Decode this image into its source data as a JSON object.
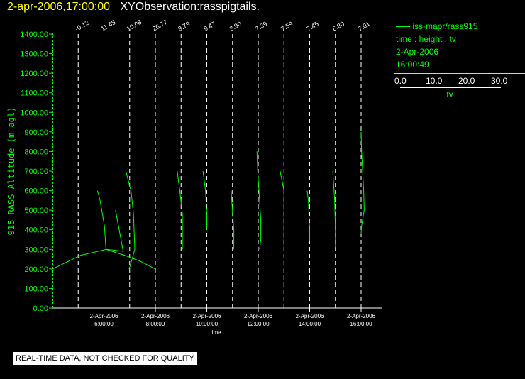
{
  "header": {
    "timestamp": "2-apr-2006,17:00:00",
    "observation": "XYObservation:rasspigtails."
  },
  "legend": {
    "series_name": "iss-mapr/rass915",
    "variables": "time : height : tv",
    "date": "2-Apr-2006",
    "time": "16:00:49",
    "scale_ticks": [
      "0.0",
      "10.0",
      "20.0",
      "30.0"
    ],
    "scale_label": "tv"
  },
  "disclaimer": "REAL-TIME DATA, NOT CHECKED FOR QUALITY",
  "colors": {
    "trace": "#00ff00",
    "title": "#ffff00",
    "axis": "#ffffff",
    "guide": "#ffffff"
  },
  "chart_data": {
    "type": "line",
    "title": "XYObservation:rasspigtails.",
    "xlabel": "time",
    "ylabel": "915 RASS Altitude (m agl)",
    "ylim": [
      0,
      1400
    ],
    "y_ticks": [
      "0.00",
      "100.00",
      "200.00",
      "300.00",
      "400.00",
      "500.00",
      "600.00",
      "700.00",
      "800.00",
      "900.00",
      "1000.00",
      "1100.00",
      "1200.00",
      "1300.00",
      "1400.00"
    ],
    "x_ticks": [
      {
        "date": "2-Apr-2006",
        "time": "6:00:00"
      },
      {
        "date": "2-Apr-2006",
        "time": "8:00:00"
      },
      {
        "date": "2-Apr-2006",
        "time": "10:00:00"
      },
      {
        "date": "2-Apr-2006",
        "time": "12:00:00"
      },
      {
        "date": "2-Apr-2006",
        "time": "14:00:00"
      },
      {
        "date": "2-Apr-2006",
        "time": "16:00:00"
      }
    ],
    "xlim_hours": [
      4.0,
      16.8
    ],
    "profiles": [
      {
        "hour": 5.0,
        "label": "-0.12",
        "points": [
          [
            5.75,
            600
          ],
          [
            5.85,
            550
          ],
          [
            6.02,
            420
          ],
          [
            6.08,
            300
          ],
          [
            6.55,
            280
          ],
          [
            6.8,
            270
          ],
          [
            7.4,
            240
          ],
          [
            8.0,
            200
          ]
        ]
      },
      {
        "hour": 6.0,
        "label": "11.45",
        "points": [
          [
            4.0,
            200
          ],
          [
            5.1,
            270
          ],
          [
            6.1,
            300
          ],
          [
            6.75,
            290
          ],
          [
            6.45,
            500
          ]
        ]
      },
      {
        "hour": 7.0,
        "label": "10.08",
        "points": [
          [
            6.85,
            700
          ],
          [
            7.05,
            600
          ],
          [
            7.15,
            480
          ],
          [
            7.2,
            300
          ],
          [
            7.05,
            230
          ],
          [
            6.98,
            200
          ]
        ]
      },
      {
        "hour": 8.0,
        "label": "26.77",
        "points": []
      },
      {
        "hour": 9.0,
        "label": "9.79",
        "points": [
          [
            8.85,
            700
          ],
          [
            8.95,
            600
          ],
          [
            9.05,
            480
          ],
          [
            9.05,
            300
          ]
        ]
      },
      {
        "hour": 10.0,
        "label": "9.47",
        "points": [
          [
            9.85,
            700
          ],
          [
            9.95,
            600
          ],
          [
            10.0,
            480
          ],
          [
            10.0,
            400
          ]
        ]
      },
      {
        "hour": 11.0,
        "label": "8.90",
        "points": [
          [
            10.95,
            600
          ],
          [
            10.97,
            550
          ],
          [
            11.05,
            400
          ],
          [
            11.05,
            300
          ]
        ]
      },
      {
        "hour": 12.0,
        "label": "7.39",
        "points": [
          [
            11.95,
            800
          ],
          [
            11.98,
            700
          ],
          [
            12.1,
            450
          ],
          [
            12.1,
            350
          ],
          [
            12.05,
            300
          ]
        ]
      },
      {
        "hour": 13.0,
        "label": "7.59",
        "points": [
          [
            12.85,
            700
          ],
          [
            13.0,
            600
          ],
          [
            13.0,
            450
          ],
          [
            13.0,
            300
          ]
        ]
      },
      {
        "hour": 14.0,
        "label": "7.45",
        "points": [
          [
            13.9,
            600
          ],
          [
            13.95,
            550
          ],
          [
            14.0,
            400
          ],
          [
            14.0,
            340
          ]
        ]
      },
      {
        "hour": 15.0,
        "label": "6.80",
        "points": [
          [
            14.9,
            700
          ],
          [
            14.97,
            550
          ],
          [
            15.0,
            400
          ],
          [
            15.0,
            310
          ]
        ]
      },
      {
        "hour": 16.0,
        "label": "7.01",
        "points": [
          [
            16.0,
            900
          ],
          [
            16.02,
            800
          ],
          [
            16.1,
            600
          ],
          [
            16.12,
            500
          ],
          [
            16.02,
            420
          ],
          [
            16.0,
            380
          ]
        ]
      }
    ]
  }
}
